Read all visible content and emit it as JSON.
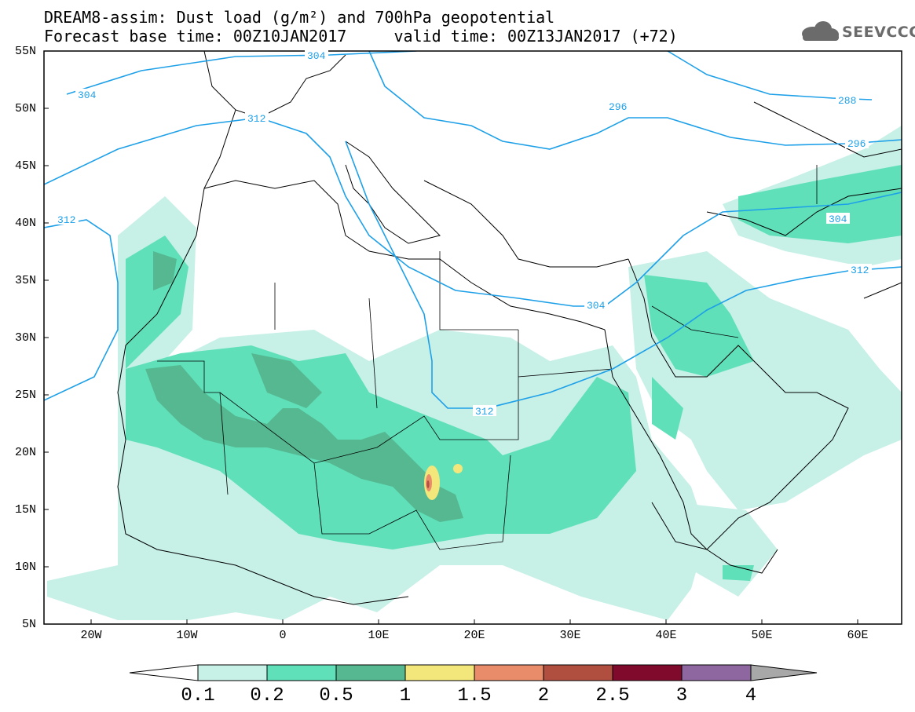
{
  "title": {
    "line1": "DREAM8-assim: Dust load (g/m²) and 700hPa geopotential",
    "line2": "Forecast base time: 00Z10JAN2017     valid time: 00Z13JAN2017 (+72)"
  },
  "logo": {
    "text": "SEEVCCC",
    "icon": "cloud-logo-icon"
  },
  "axes": {
    "lat_labels": [
      "55N",
      "50N",
      "45N",
      "40N",
      "35N",
      "30N",
      "25N",
      "20N",
      "15N",
      "10N",
      "5N"
    ],
    "lon_labels": [
      "20W",
      "10W",
      "0",
      "10E",
      "20E",
      "30E",
      "40E",
      "50E",
      "60E"
    ]
  },
  "contour_labels": {
    "a": "304",
    "b": "304",
    "c": "312",
    "d": "312",
    "e": "296",
    "f": "288",
    "g": "296",
    "h": "304",
    "i": "312",
    "j": "304",
    "k": "312"
  },
  "colorbar": {
    "labels": [
      "0.1",
      "0.2",
      "0.5",
      "1",
      "1.5",
      "2",
      "2.5",
      "3",
      "4"
    ],
    "colors": [
      "#c7f0e7",
      "#5fe0b9",
      "#55b891",
      "#f3e67a",
      "#e98c6a",
      "#b04e3f",
      "#7f0a2b",
      "#8e67a0",
      "#a8a8a8"
    ]
  },
  "colors": {
    "dust_low": "#c7f0e7",
    "dust_mid": "#5fe0b9",
    "dust_high": "#55b891",
    "dust_1": "#f3e67a",
    "dust_1_5": "#e98c6a",
    "geopotential": "#1ea0e8"
  }
}
